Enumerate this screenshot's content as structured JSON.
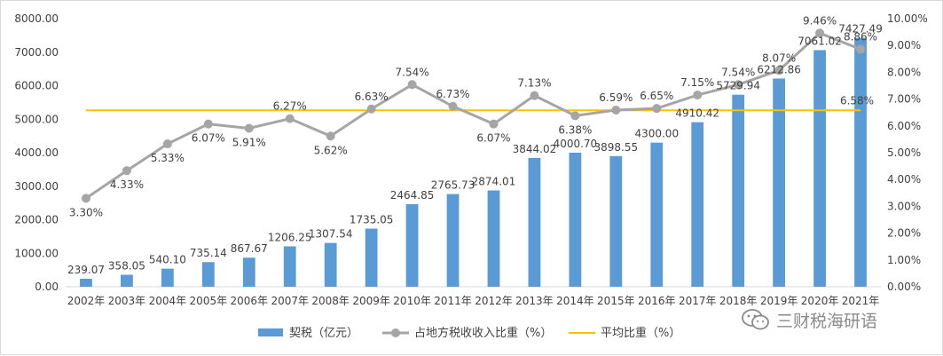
{
  "chart_data": {
    "type": "bar",
    "categories": [
      "2002年",
      "2003年",
      "2004年",
      "2005年",
      "2006年",
      "2007年",
      "2008年",
      "2009年",
      "2010年",
      "2011年",
      "2012年",
      "2013年",
      "2014年",
      "2015年",
      "2016年",
      "2017年",
      "2018年",
      "2019年",
      "2020年",
      "2021年"
    ],
    "series": [
      {
        "name": "契税（亿元）",
        "type": "bar",
        "axis": "left",
        "color": "#5b9bd5",
        "values": [
          239.07,
          358.05,
          540.1,
          735.14,
          867.67,
          1206.25,
          1307.54,
          1735.05,
          2464.85,
          2765.73,
          2874.01,
          3844.02,
          4000.7,
          3898.55,
          4300.0,
          4910.42,
          5729.94,
          6212.86,
          7061.02,
          7427.49
        ],
        "labels": [
          "239.07",
          "358.05",
          "540.10",
          "735.14",
          "867.67",
          "1206.25",
          "1307.54",
          "1735.05",
          "2464.85",
          "2765.73",
          "2874.01",
          "3844.02",
          "4000.70",
          "3898.55",
          "4300.00",
          "4910.42",
          "5729.94",
          "6212.86",
          "7061.02",
          "7427.49"
        ]
      },
      {
        "name": "占地方税收收入比重（%）",
        "type": "line",
        "axis": "right",
        "color": "#a5a5a5",
        "values": [
          3.3,
          4.33,
          5.33,
          6.07,
          5.91,
          6.27,
          5.62,
          6.63,
          7.54,
          6.73,
          6.07,
          7.13,
          6.38,
          6.59,
          6.65,
          7.15,
          7.54,
          8.07,
          9.46,
          8.86
        ],
        "labels": [
          "3.30%",
          "4.33%",
          "5.33%",
          "6.07%",
          "5.91%",
          "6.27%",
          "5.62%",
          "6.63%",
          "7.54%",
          "6.73%",
          "6.07%",
          "7.13%",
          "6.38%",
          "6.59%",
          "6.65%",
          "7.15%",
          "7.54%",
          "8.07%",
          "9.46%",
          "8.86%"
        ]
      },
      {
        "name": "平均比重（%）",
        "type": "line",
        "axis": "right",
        "color": "#ffc000",
        "value": 6.58,
        "label": "6.58%"
      }
    ],
    "left_axis": {
      "ylim": [
        0,
        8000
      ],
      "ticks": [
        "0.00",
        "1000.00",
        "2000.00",
        "3000.00",
        "4000.00",
        "5000.00",
        "6000.00",
        "7000.00",
        "8000.00"
      ]
    },
    "right_axis": {
      "ylim": [
        0,
        10
      ],
      "ticks": [
        "0.00%",
        "1.00%",
        "2.00%",
        "3.00%",
        "4.00%",
        "5.00%",
        "6.00%",
        "7.00%",
        "8.00%",
        "9.00%",
        "10.00%"
      ]
    },
    "grid": false,
    "legend_position": "bottom"
  },
  "watermark": {
    "text": "三财税海研语",
    "icon": "wechat-icon"
  }
}
